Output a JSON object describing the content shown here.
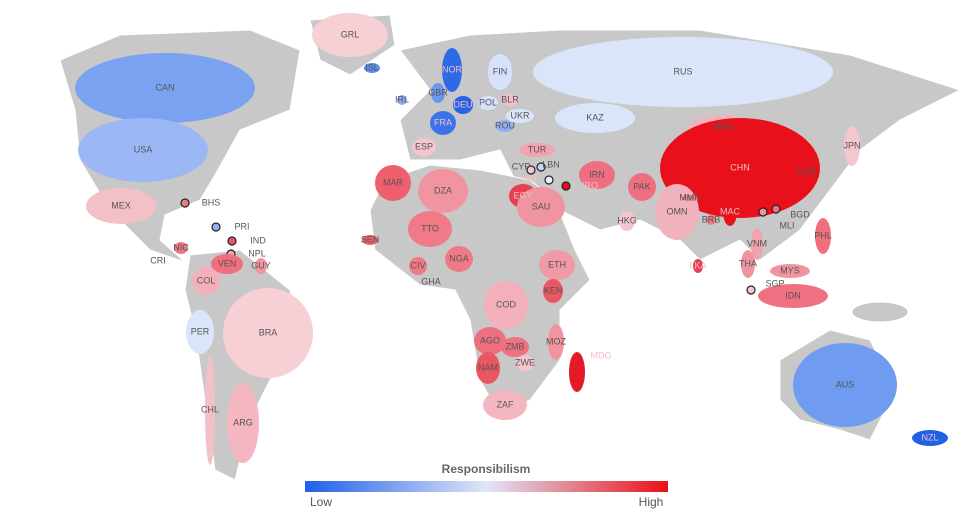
{
  "legend": {
    "title": "Responsibilism",
    "low": "Low",
    "high": "High",
    "colors": [
      "#1f5fe8",
      "#dfe6f7",
      "#e8101a"
    ]
  },
  "countries": [
    {
      "label": "GRL",
      "color": "#f7d0d6"
    },
    {
      "label": "ISL",
      "color": "#5b8ef0"
    },
    {
      "label": "NOR",
      "color": "#2d6ae8"
    },
    {
      "label": "FIN",
      "color": "#d6e2fb"
    },
    {
      "label": "RUS",
      "color": "#dbe5fa"
    },
    {
      "label": "CAN",
      "color": "#7aa2f0"
    },
    {
      "label": "IRL",
      "color": "#8db0f2"
    },
    {
      "label": "GBR",
      "color": "#6b96ee"
    },
    {
      "label": "DEU",
      "color": "#2a62e6"
    },
    {
      "label": "POL",
      "color": "#d6e2fb"
    },
    {
      "label": "BLR",
      "color": "#f4c0c8"
    },
    {
      "label": "UKR",
      "color": "#dbe5fa"
    },
    {
      "label": "FRA",
      "color": "#3b74ea"
    },
    {
      "label": "ROU",
      "color": "#8fb0f0"
    },
    {
      "label": "KAZ",
      "color": "#dbe5fa"
    },
    {
      "label": "MNG",
      "color": "#f0b3be"
    },
    {
      "label": "JPN",
      "color": "#f4c6ce"
    },
    {
      "label": "USA",
      "color": "#9bb8f4"
    },
    {
      "label": "ESP",
      "color": "#f4c6ce"
    },
    {
      "label": "TUR",
      "color": "#f0a4b0"
    },
    {
      "label": "CYP",
      "color": "#c9d6f5"
    },
    {
      "label": "LBN",
      "color": "#f4c6ce"
    },
    {
      "label": "ISR",
      "color": "#e8eefb"
    },
    {
      "label": "IRQ",
      "color": "#e8101a"
    },
    {
      "label": "IRN",
      "color": "#ee7080"
    },
    {
      "label": "KOR",
      "color": "#f4c6ce"
    },
    {
      "label": "CHN",
      "color": "#e8101a"
    },
    {
      "label": "MAR",
      "color": "#ef5f6d"
    },
    {
      "label": "DZA",
      "color": "#f0959f"
    },
    {
      "label": "EGY",
      "color": "#e84050"
    },
    {
      "label": "SAU",
      "color": "#f0959f"
    },
    {
      "label": "PAK",
      "color": "#ee7080"
    },
    {
      "label": "MEX",
      "color": "#f4c0c8"
    },
    {
      "label": "BHS",
      "color": "#f07a88"
    },
    {
      "label": "PRI",
      "color": "#8fb0f0"
    },
    {
      "label": "IND",
      "color": "#ea5763"
    },
    {
      "label": "NPL",
      "color": "#f0a4b0"
    },
    {
      "label": "OMN",
      "color": "#f0b3be"
    },
    {
      "label": "MMR",
      "color": "#ef7a87"
    },
    {
      "label": "HKG",
      "color": "#f4c6ce"
    },
    {
      "label": "MAC",
      "color": "#e8101a"
    },
    {
      "label": "BGD",
      "color": "#ef6f7d"
    },
    {
      "label": "MLI",
      "color": "#f0959f"
    },
    {
      "label": "BRB",
      "color": "#f07a88"
    },
    {
      "label": "TTO",
      "color": "#f07a88"
    },
    {
      "label": "SEN",
      "color": "#ef5f6d"
    },
    {
      "label": "NIC",
      "color": "#ef7a87"
    },
    {
      "label": "VNM",
      "color": "#f0a4b0"
    },
    {
      "label": "PHL",
      "color": "#ef6f7d"
    },
    {
      "label": "CRI",
      "color": "#f4c0c8"
    },
    {
      "label": "VEN",
      "color": "#ef6f7d"
    },
    {
      "label": "GUY",
      "color": "#f0959f"
    },
    {
      "label": "THA",
      "color": "#f0959f"
    },
    {
      "label": "NGA",
      "color": "#ef7a87"
    },
    {
      "label": "CIV",
      "color": "#ef7a87"
    },
    {
      "label": "ETH",
      "color": "#f09aa5"
    },
    {
      "label": "GHA",
      "color": "#f0a4b0"
    },
    {
      "label": "LKA",
      "color": "#e84050"
    },
    {
      "label": "COL",
      "color": "#f4b0ba"
    },
    {
      "label": "MYS",
      "color": "#f0959f"
    },
    {
      "label": "KEN",
      "color": "#ea5763"
    },
    {
      "label": "SGP",
      "color": "#f4c6ce"
    },
    {
      "label": "IDN",
      "color": "#ef7080"
    },
    {
      "label": "COD",
      "color": "#f4b0ba"
    },
    {
      "label": "PER",
      "color": "#dbe5fa"
    },
    {
      "label": "BRA",
      "color": "#f7d0d6"
    },
    {
      "label": "AGO",
      "color": "#ee7080"
    },
    {
      "label": "MOZ",
      "color": "#f0959f"
    },
    {
      "label": "ZMB",
      "color": "#ef7080"
    },
    {
      "label": "ZWE",
      "color": "#f4c6ce"
    },
    {
      "label": "MDG",
      "color": "#e41a28"
    },
    {
      "label": "NAM",
      "color": "#ea5763"
    },
    {
      "label": "AUS",
      "color": "#6f9cf0"
    },
    {
      "label": "CHL",
      "color": "#f4c0c8"
    },
    {
      "label": "ARG",
      "color": "#f4b6c0"
    },
    {
      "label": "ZAF",
      "color": "#f4b6c0"
    },
    {
      "label": "NZL",
      "color": "#2062e6"
    }
  ]
}
